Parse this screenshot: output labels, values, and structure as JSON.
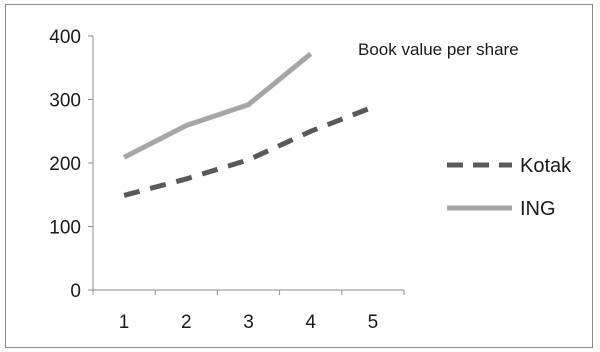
{
  "chart_data": {
    "type": "line",
    "title": "Book value per share",
    "xlabel": "",
    "ylabel": "",
    "categories": [
      "1",
      "2",
      "3",
      "4",
      "5"
    ],
    "ylim": [
      0,
      400
    ],
    "yticks": [
      "0",
      "100",
      "200",
      "300",
      "400"
    ],
    "grid": false,
    "legend_position": "right",
    "series": [
      {
        "name": "Kotak",
        "color": "#595959",
        "dash": true,
        "values": [
          149,
          175,
          205,
          250,
          288
        ]
      },
      {
        "name": "ING",
        "color": "#a6a6a6",
        "dash": false,
        "values": [
          209,
          259,
          292,
          372,
          null
        ]
      }
    ]
  }
}
